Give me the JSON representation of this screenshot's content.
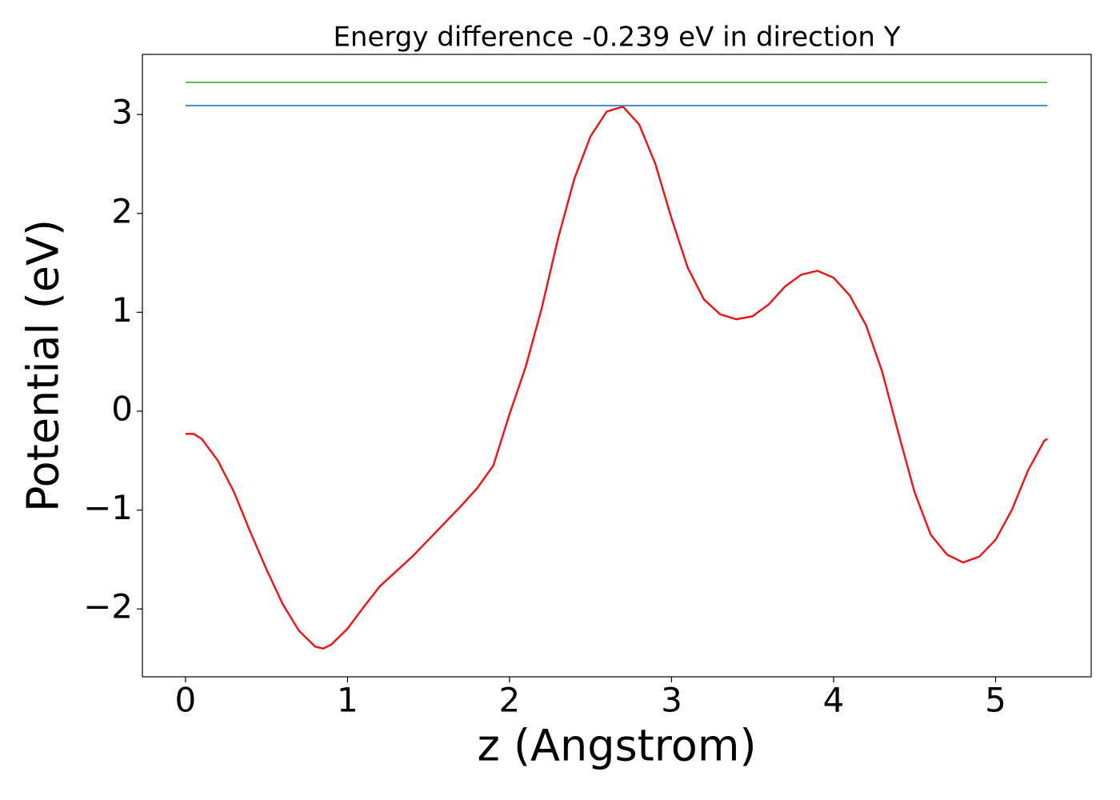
{
  "chart_data": {
    "type": "line",
    "title": "Energy difference -0.239 eV in direction Y",
    "x_label": "z (Angstrom)",
    "y_label": "Potential (eV)",
    "xlim": [
      -0.266,
      5.59
    ],
    "ylim": [
      -2.686,
      3.608
    ],
    "xticks": [
      0,
      1,
      2,
      3,
      4,
      5
    ],
    "yticks": [
      {
        "value": -2,
        "label": "−2"
      },
      {
        "value": -1,
        "label": "−1"
      },
      0,
      1,
      2,
      3
    ],
    "series": [
      {
        "color": "#e41a1c",
        "x": [
          0,
          0.05,
          0.1,
          0.2,
          0.3,
          0.4,
          0.5,
          0.6,
          0.7,
          0.8,
          0.85,
          0.9,
          1.0,
          1.1,
          1.2,
          1.3,
          1.4,
          1.5,
          1.6,
          1.7,
          1.8,
          1.9,
          2.0,
          2.1,
          2.2,
          2.3,
          2.4,
          2.5,
          2.6,
          2.7,
          2.8,
          2.9,
          3.0,
          3.1,
          3.2,
          3.3,
          3.4,
          3.5,
          3.6,
          3.7,
          3.8,
          3.9,
          4.0,
          4.1,
          4.2,
          4.3,
          4.4,
          4.5,
          4.6,
          4.7,
          4.8,
          4.9,
          5.0,
          5.1,
          5.2,
          5.3,
          5.32
        ],
        "values": [
          -0.23,
          -0.23,
          -0.28,
          -0.5,
          -0.82,
          -1.22,
          -1.6,
          -1.95,
          -2.22,
          -2.38,
          -2.4,
          -2.36,
          -2.2,
          -1.98,
          -1.77,
          -1.62,
          -1.47,
          -1.3,
          -1.13,
          -0.96,
          -0.78,
          -0.55,
          -0.03,
          0.45,
          1.05,
          1.75,
          2.35,
          2.78,
          3.03,
          3.08,
          2.9,
          2.5,
          1.95,
          1.45,
          1.13,
          0.98,
          0.93,
          0.96,
          1.08,
          1.26,
          1.38,
          1.42,
          1.35,
          1.17,
          0.87,
          0.4,
          -0.22,
          -0.82,
          -1.25,
          -1.45,
          -1.53,
          -1.47,
          -1.3,
          -1.0,
          -0.6,
          -0.3,
          -0.28
        ]
      },
      {
        "color": "#4daf4a",
        "x": [
          0,
          5.32
        ],
        "values": [
          3.325,
          3.325
        ]
      },
      {
        "color": "#377eb8",
        "x": [
          0,
          5.32
        ],
        "values": [
          3.09,
          3.09
        ]
      }
    ]
  }
}
